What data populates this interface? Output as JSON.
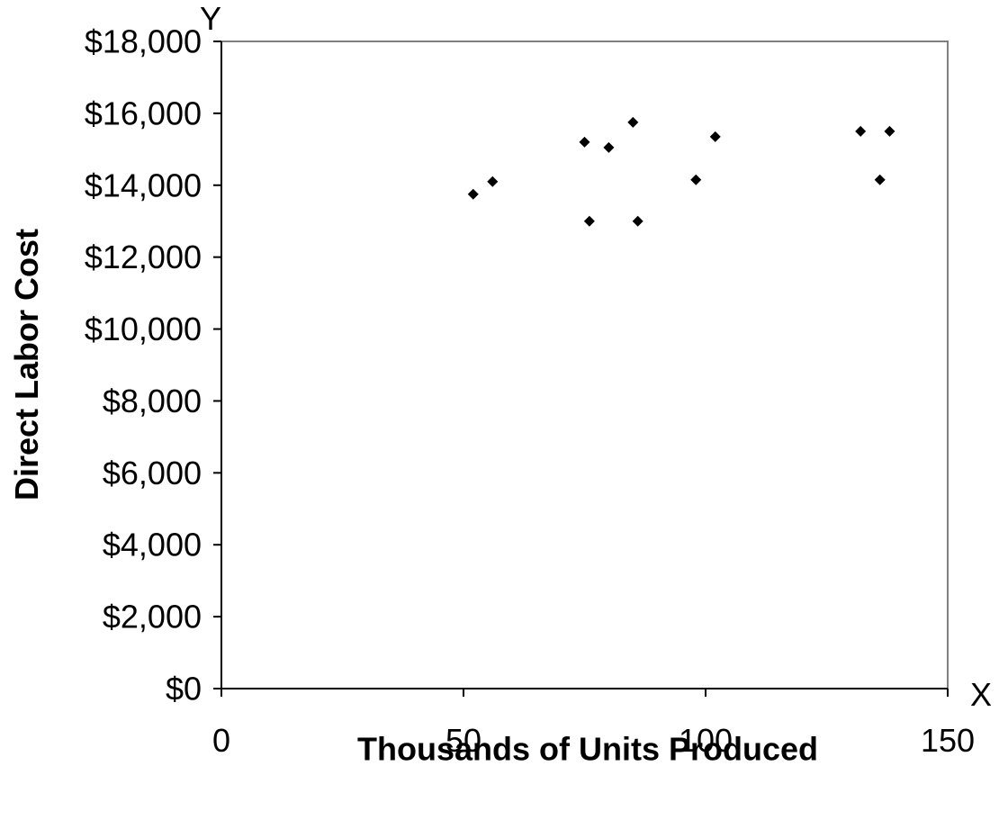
{
  "chart_data": {
    "type": "scatter",
    "title": "",
    "xlabel": "Thousands of Units Produced",
    "ylabel": "Direct Labor Cost",
    "x_axis_letter": "X",
    "y_axis_letter": "Y",
    "xlim": [
      0,
      150
    ],
    "ylim": [
      0,
      18000
    ],
    "xticks": [
      0,
      50,
      100,
      150
    ],
    "xtick_labels": [
      "0",
      "50",
      "100",
      "150"
    ],
    "yticks": [
      0,
      2000,
      4000,
      6000,
      8000,
      10000,
      12000,
      14000,
      16000,
      18000
    ],
    "ytick_labels": [
      "$0",
      "$2,000",
      "$4,000",
      "$6,000",
      "$8,000",
      "$10,000",
      "$12,000",
      "$14,000",
      "$16,000",
      "$18,000"
    ],
    "grid": false,
    "legend": "none",
    "marker": "diamond",
    "marker_color": "#000000",
    "series": [
      {
        "points": [
          {
            "x": 52,
            "y": 13750
          },
          {
            "x": 56,
            "y": 14100
          },
          {
            "x": 75,
            "y": 15200
          },
          {
            "x": 76,
            "y": 13000
          },
          {
            "x": 80,
            "y": 15050
          },
          {
            "x": 85,
            "y": 15750
          },
          {
            "x": 86,
            "y": 13000
          },
          {
            "x": 98,
            "y": 14150
          },
          {
            "x": 102,
            "y": 15350
          },
          {
            "x": 132,
            "y": 15500
          },
          {
            "x": 136,
            "y": 14150
          },
          {
            "x": 138,
            "y": 15500
          }
        ]
      }
    ]
  }
}
